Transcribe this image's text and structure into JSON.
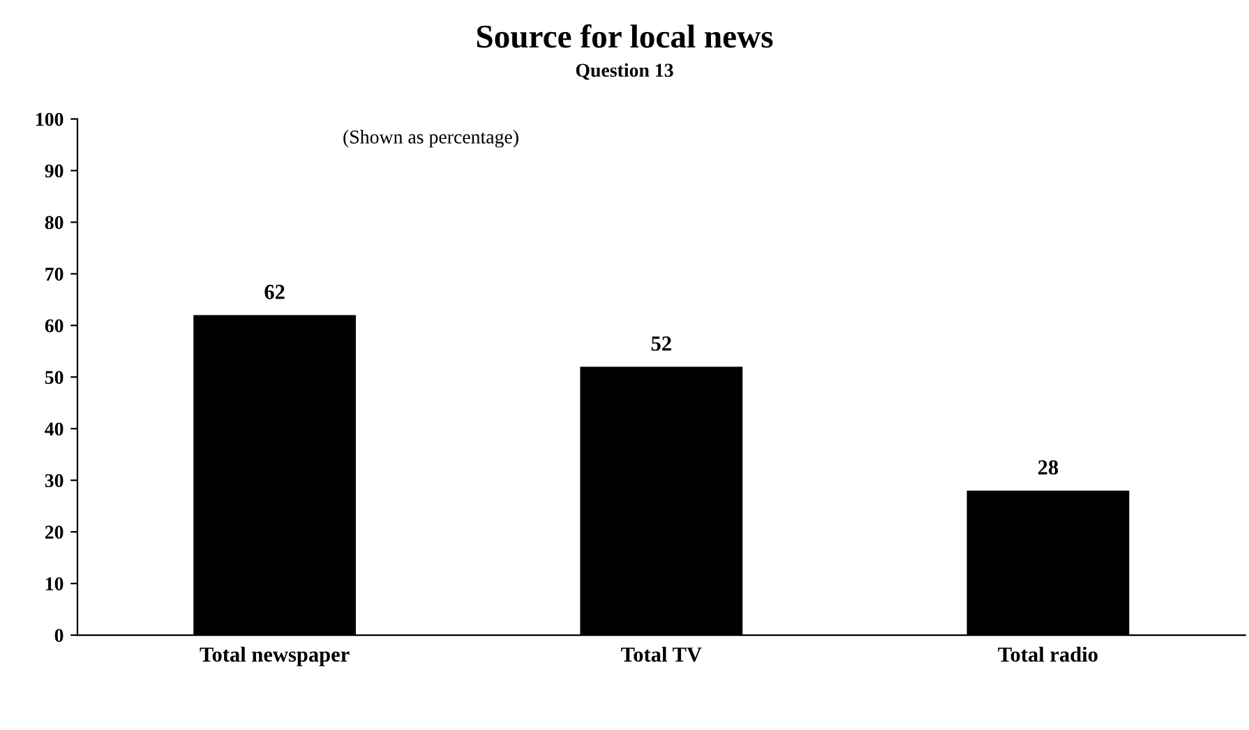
{
  "chart_data": {
    "type": "bar",
    "title": "Source for local news",
    "subtitle": "Question 13",
    "annotations": [
      "(Shown as percentage)"
    ],
    "categories": [
      "Total newspaper",
      "Total TV",
      "Total radio"
    ],
    "values": [
      62,
      52,
      28
    ],
    "color": "#000000",
    "ylim": [
      0,
      100
    ],
    "yticks": [
      0,
      10,
      20,
      30,
      40,
      50,
      60,
      70,
      80,
      90,
      100
    ],
    "grid": false,
    "data_labels": true
  }
}
